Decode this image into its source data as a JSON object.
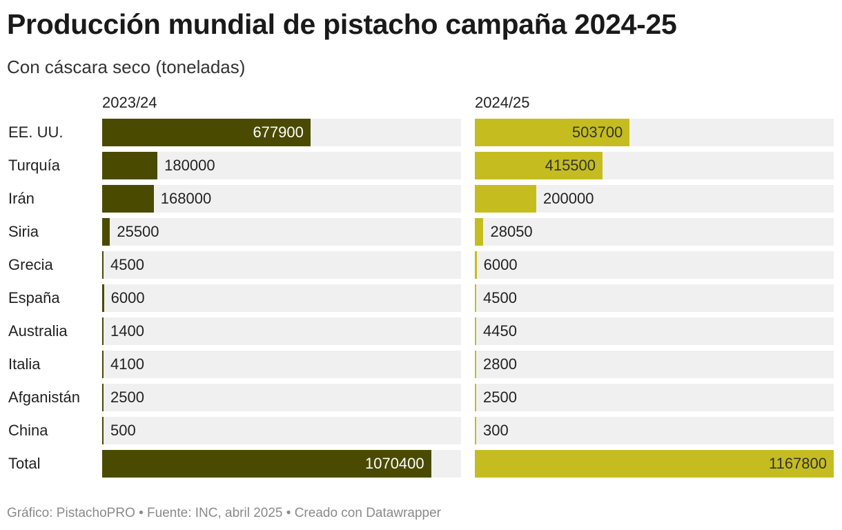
{
  "title": "Producción mundial de pistacho campaña 2024-25",
  "subtitle": "Con cáscara seco (toneladas)",
  "footer": "Gráfico: PistachoPRO • Fuente: INC, abril 2025 • Creado con Datawrapper",
  "chart_data": {
    "type": "bar",
    "orientation": "horizontal",
    "categories": [
      "EE. UU.",
      "Turquía",
      "Irán",
      "Siria",
      "Grecia",
      "España",
      "Australia",
      "Italia",
      "Afganistán",
      "China",
      "Total"
    ],
    "series": [
      {
        "name": "2023/24",
        "color": "#4a4a00",
        "values": [
          677900,
          180000,
          168000,
          25500,
          4500,
          6000,
          1400,
          4100,
          2500,
          500,
          1070400
        ]
      },
      {
        "name": "2024/25",
        "color": "#c5bd1f",
        "values": [
          503700,
          415500,
          200000,
          28050,
          6000,
          4500,
          4450,
          2800,
          2500,
          300,
          1167800
        ]
      }
    ],
    "xlim": [
      0,
      1167800
    ],
    "grid": false,
    "legend": "none"
  }
}
